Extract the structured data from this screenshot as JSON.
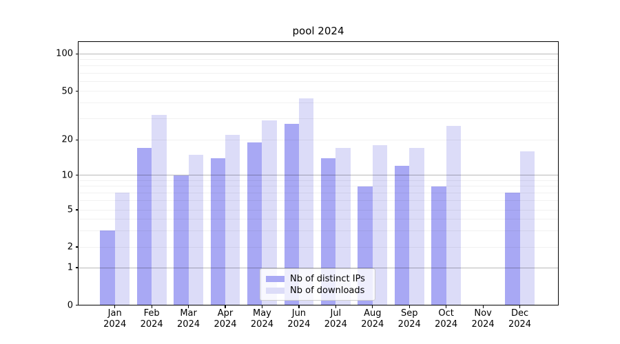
{
  "chart_data": {
    "type": "bar",
    "title": "pool 2024",
    "categories": [
      "Jan",
      "Feb",
      "Mar",
      "Apr",
      "May",
      "Jun",
      "Jul",
      "Aug",
      "Sep",
      "Oct",
      "Nov",
      "Dec"
    ],
    "x_tick_year": "2024",
    "series": [
      {
        "name": "Nb of distinct IPs",
        "color": "#a8a8f4",
        "values": [
          3,
          17,
          10,
          14,
          19,
          27,
          14,
          8,
          12,
          8,
          0,
          7
        ]
      },
      {
        "name": "Nb of downloads",
        "color": "#dcdcf8",
        "values": [
          7,
          32,
          15,
          22,
          29,
          44,
          17,
          18,
          17,
          26,
          0,
          16
        ]
      }
    ],
    "y_axis": {
      "scale": "symlog",
      "tick_labels": [
        "0",
        "1",
        "2",
        "5",
        "10",
        "20",
        "50",
        "100"
      ],
      "tick_values": [
        0,
        1,
        2,
        5,
        10,
        20,
        50,
        100
      ],
      "range": [
        0,
        126
      ],
      "minor_gridlines": [
        2,
        3,
        4,
        5,
        6,
        7,
        8,
        9,
        20,
        30,
        40,
        50,
        60,
        70,
        80,
        90
      ],
      "major_gridlines": [
        1,
        10,
        100
      ]
    },
    "xlabel": "",
    "ylabel": "",
    "grid": true,
    "legend": {
      "position": "lower center",
      "entries": [
        "Nb of distinct IPs",
        "Nb of downloads"
      ]
    }
  }
}
